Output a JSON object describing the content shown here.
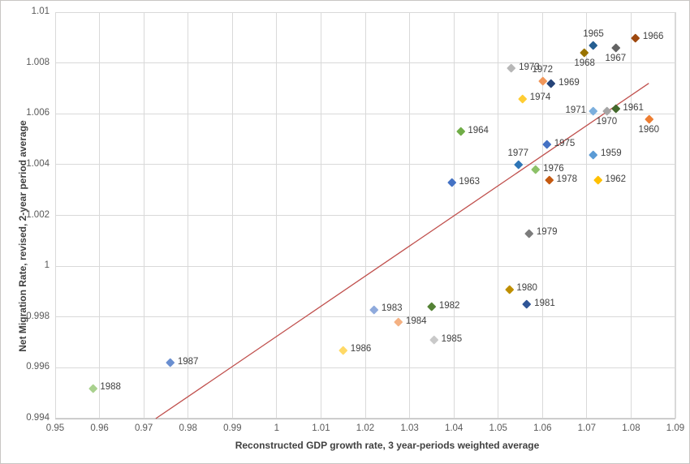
{
  "chart_data": {
    "type": "scatter",
    "title": "",
    "xlabel": "Reconstructed GDP growth rate, 3 year-periods weighted average",
    "ylabel": "Net Migration Rate, revised, 2-year period average",
    "xlim": [
      0.95,
      1.09
    ],
    "ylim": [
      0.994,
      1.01
    ],
    "grid": true,
    "legend": "none",
    "x_ticks": [
      "0.95",
      "0.96",
      "0.97",
      "0.98",
      "0.99",
      "1",
      "1.01",
      "1.02",
      "1.03",
      "1.04",
      "1.05",
      "1.06",
      "1.07",
      "1.08",
      "1.09"
    ],
    "y_ticks": [
      "1.01",
      "1.008",
      "1.006",
      "1.004",
      "1.002",
      "1",
      "0.998",
      "0.996",
      "0.994"
    ],
    "colors": {
      "grid": "#d9d9d9",
      "axis_line": "#bfbfbf",
      "tick_text": "#595959",
      "title_text": "#404040",
      "label_text": "#404040",
      "trendline": "#c0504d",
      "background": "#ffffff"
    },
    "trendline": {
      "x1": 0.9727,
      "y1": 0.994,
      "x2": 1.084,
      "y2": 1.0072
    },
    "points": [
      {
        "year": "1959",
        "x": 1.0715,
        "y": 1.0044,
        "color": "#5b9bd5",
        "label_pos": "right"
      },
      {
        "year": "1960",
        "x": 1.084,
        "y": 1.0058,
        "color": "#ed7d31",
        "label_pos": "below"
      },
      {
        "year": "1961",
        "x": 1.0765,
        "y": 1.0062,
        "color": "#43682b",
        "label_pos": "right"
      },
      {
        "year": "1962",
        "x": 1.0725,
        "y": 1.0034,
        "color": "#ffc000",
        "label_pos": "right"
      },
      {
        "year": "1963",
        "x": 1.0395,
        "y": 1.0033,
        "color": "#4472c4",
        "label_pos": "right"
      },
      {
        "year": "1964",
        "x": 1.0415,
        "y": 1.0053,
        "color": "#70ad47",
        "label_pos": "right"
      },
      {
        "year": "1965",
        "x": 1.0715,
        "y": 1.0087,
        "color": "#255e91",
        "label_pos": "above"
      },
      {
        "year": "1966",
        "x": 1.081,
        "y": 1.009,
        "color": "#9e480e",
        "label_pos": "right"
      },
      {
        "year": "1967",
        "x": 1.0765,
        "y": 1.0086,
        "color": "#636363",
        "label_pos": "below"
      },
      {
        "year": "1968",
        "x": 1.0695,
        "y": 1.0084,
        "color": "#997300",
        "label_pos": "below"
      },
      {
        "year": "1969",
        "x": 1.062,
        "y": 1.0072,
        "color": "#264478",
        "label_pos": "right"
      },
      {
        "year": "1970",
        "x": 1.0745,
        "y": 1.0061,
        "color": "#a5a5a5",
        "label_pos": "below"
      },
      {
        "year": "1971",
        "x": 1.0715,
        "y": 1.0061,
        "color": "#7cafdd",
        "label_pos": "left"
      },
      {
        "year": "1972",
        "x": 1.06,
        "y": 1.0073,
        "color": "#f1975a",
        "label_pos": "above"
      },
      {
        "year": "1973",
        "x": 1.053,
        "y": 1.0078,
        "color": "#b7b7b7",
        "label_pos": "right"
      },
      {
        "year": "1974",
        "x": 1.0555,
        "y": 1.0066,
        "color": "#ffcd33",
        "label_pos": "right"
      },
      {
        "year": "1975",
        "x": 1.061,
        "y": 1.0048,
        "color": "#4472c4",
        "label_pos": "right"
      },
      {
        "year": "1976",
        "x": 1.0585,
        "y": 1.0038,
        "color": "#8cc168",
        "label_pos": "right"
      },
      {
        "year": "1977",
        "x": 1.0545,
        "y": 1.004,
        "color": "#2e75b6",
        "label_pos": "above"
      },
      {
        "year": "1978",
        "x": 1.0615,
        "y": 1.0034,
        "color": "#c55a11",
        "label_pos": "right"
      },
      {
        "year": "1979",
        "x": 1.057,
        "y": 1.0013,
        "color": "#7c7c7c",
        "label_pos": "right"
      },
      {
        "year": "1980",
        "x": 1.0525,
        "y": 0.9991,
        "color": "#bf8f00",
        "label_pos": "right"
      },
      {
        "year": "1981",
        "x": 1.0565,
        "y": 0.9985,
        "color": "#2f5597",
        "label_pos": "right"
      },
      {
        "year": "1982",
        "x": 1.035,
        "y": 0.9984,
        "color": "#548235",
        "label_pos": "right"
      },
      {
        "year": "1983",
        "x": 1.022,
        "y": 0.9983,
        "color": "#8faadc",
        "label_pos": "right"
      },
      {
        "year": "1984",
        "x": 1.0275,
        "y": 0.9978,
        "color": "#f4b183",
        "label_pos": "right"
      },
      {
        "year": "1985",
        "x": 1.0355,
        "y": 0.9971,
        "color": "#c9c9c9",
        "label_pos": "right"
      },
      {
        "year": "1986",
        "x": 1.015,
        "y": 0.9967,
        "color": "#ffd966",
        "label_pos": "right"
      },
      {
        "year": "1987",
        "x": 0.976,
        "y": 0.9962,
        "color": "#698ed0",
        "label_pos": "right"
      },
      {
        "year": "1988",
        "x": 0.9585,
        "y": 0.9952,
        "color": "#a9d18e",
        "label_pos": "right"
      }
    ]
  }
}
